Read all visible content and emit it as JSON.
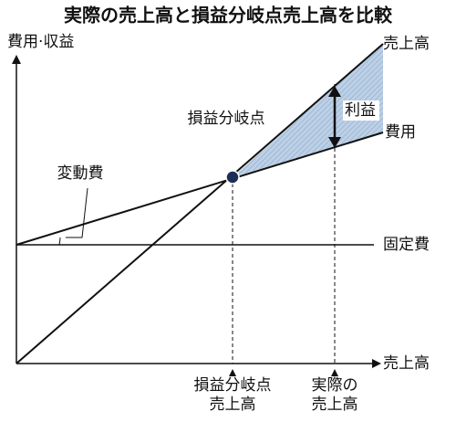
{
  "header": {
    "title": "実際の売上高と損益分岐点売上高を比較"
  },
  "axes": {
    "y_label": "費用·収益",
    "x_label": "売上高"
  },
  "lines": {
    "sales": "売上高",
    "cost": "費用",
    "fixed_cost": "固定費",
    "variable_cost": "変動費"
  },
  "annotations": {
    "breakeven_point": "損益分岐点",
    "profit": "利益"
  },
  "x_markers": {
    "breakeven_sales": [
      "損益分岐点",
      "売上高"
    ],
    "actual_sales": [
      "実際の",
      "売上高"
    ]
  }
}
